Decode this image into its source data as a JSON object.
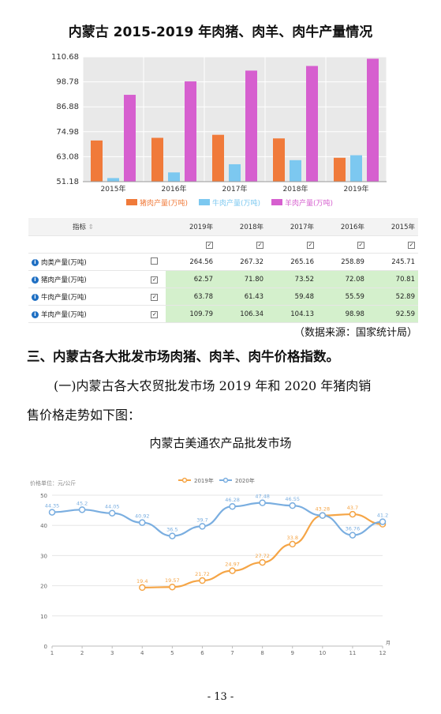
{
  "chart1": {
    "title": "内蒙古 2015-2019 年肉猪、肉羊、肉牛产量情况",
    "chart_data": {
      "type": "bar",
      "categories": [
        "2015年",
        "2016年",
        "2017年",
        "2018年",
        "2019年"
      ],
      "yticks": [
        "110.68",
        "98.78",
        "86.88",
        "74.98",
        "63.08",
        "51.18"
      ],
      "ylim": [
        51.18,
        110.68
      ],
      "series": [
        {
          "name": "猪肉产量(万吨)",
          "color": "#f07a3a",
          "values": [
            70.81,
            72.08,
            73.52,
            71.8,
            62.57
          ]
        },
        {
          "name": "牛肉产量(万吨)",
          "color": "#7cc8f0",
          "values": [
            52.89,
            55.59,
            59.48,
            61.43,
            63.78
          ]
        },
        {
          "name": "羊肉产量(万吨)",
          "color": "#d65fcf",
          "values": [
            92.59,
            98.98,
            104.13,
            106.34,
            109.79
          ]
        }
      ],
      "legend": "bottom",
      "grid": true
    }
  },
  "table": {
    "header": [
      "指标",
      "2019年",
      "2018年",
      "2017年",
      "2016年",
      "2015年"
    ],
    "rows": [
      {
        "label": "肉类产量(万吨)",
        "checked": false,
        "values": [
          "264.56",
          "267.32",
          "265.16",
          "258.89",
          "245.71"
        ],
        "highlight": false
      },
      {
        "label": "猪肉产量(万吨)",
        "checked": true,
        "values": [
          "62.57",
          "71.80",
          "73.52",
          "72.08",
          "70.81"
        ],
        "highlight": true
      },
      {
        "label": "牛肉产量(万吨)",
        "checked": true,
        "values": [
          "63.78",
          "61.43",
          "59.48",
          "55.59",
          "52.89"
        ],
        "highlight": true
      },
      {
        "label": "羊肉产量(万吨)",
        "checked": true,
        "values": [
          "109.79",
          "106.34",
          "104.13",
          "98.98",
          "92.59"
        ],
        "highlight": true
      }
    ]
  },
  "source": "（数据来源：国家统计局）",
  "section_heading": "三、内蒙古各大批发市场肉猪、肉羊、肉牛价格指数。",
  "paragraph_line1": "(一)内蒙古各大农贸批发市场 2019 年和 2020 年猪肉销",
  "paragraph_line2": "售价格走势如下图：",
  "chart2": {
    "title": "内蒙古美通农产品批发市场",
    "chart_data": {
      "type": "line",
      "ylabel": "价格单位：元/公斤",
      "xunit": "月",
      "x": [
        1,
        2,
        3,
        4,
        5,
        6,
        7,
        8,
        9,
        10,
        11,
        12
      ],
      "yticks": [
        0,
        10,
        20,
        30,
        40,
        50
      ],
      "ylim": [
        0,
        50
      ],
      "grid": true,
      "legend": "top",
      "series": [
        {
          "name": "2019年",
          "color": "#f5a546",
          "x": [
            4,
            5,
            6,
            7,
            8,
            9,
            10,
            11,
            12
          ],
          "values": [
            19.4,
            19.57,
            21.72,
            24.97,
            27.72,
            33.8,
            43.28,
            43.7,
            40.4
          ],
          "labels": [
            "19.4",
            "19.57",
            "21.72",
            "24.97",
            "27.72",
            "33.8",
            "43.28",
            "43.7",
            ""
          ]
        },
        {
          "name": "2020年",
          "color": "#7aaee0",
          "x": [
            1,
            2,
            3,
            4,
            5,
            6,
            7,
            8,
            9,
            10,
            11,
            12
          ],
          "values": [
            44.35,
            45.2,
            44.05,
            40.92,
            36.5,
            39.7,
            46.28,
            47.48,
            46.55,
            43.28,
            36.76,
            41.2
          ],
          "labels": [
            "44.35",
            "45.2",
            "44.05",
            "40.92",
            "36.5",
            "39.7",
            "46.28",
            "47.48",
            "46.55",
            "",
            "36.76",
            "41.2"
          ]
        }
      ]
    }
  },
  "page_number": "- 13 -"
}
